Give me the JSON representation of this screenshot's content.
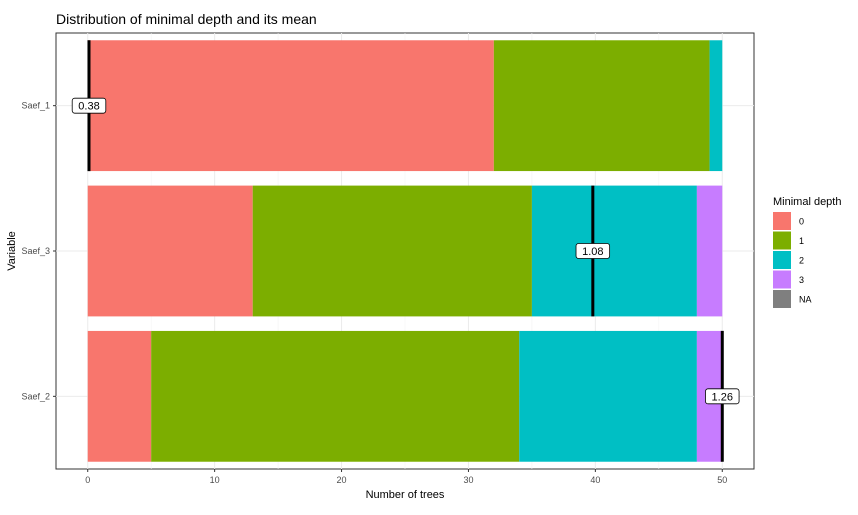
{
  "chart_data": {
    "type": "bar",
    "orientation": "horizontal",
    "stacked": true,
    "title": "Distribution of minimal depth and its mean",
    "xlabel": "Number of trees",
    "ylabel": "Variable",
    "xlim": [
      -2.5,
      52.5
    ],
    "x_ticks": [
      0,
      10,
      20,
      30,
      40,
      50
    ],
    "grid": true,
    "categories": [
      "Saef_1",
      "Saef_3",
      "Saef_2"
    ],
    "series": [
      {
        "name": "0",
        "color": "#F8766D",
        "values": [
          32,
          13,
          5
        ]
      },
      {
        "name": "1",
        "color": "#7CAE00",
        "values": [
          17,
          22,
          29
        ]
      },
      {
        "name": "2",
        "color": "#00BFC4",
        "values": [
          1,
          13,
          14
        ]
      },
      {
        "name": "3",
        "color": "#C77CFF",
        "values": [
          0,
          2,
          2
        ]
      },
      {
        "name": "NA",
        "color": "#7F7F7F",
        "values": [
          0,
          0,
          0
        ]
      }
    ],
    "means": [
      {
        "label": "0.38",
        "x": 0.1
      },
      {
        "label": "1.08",
        "x": 39.8
      },
      {
        "label": "1.26",
        "x": 50.0
      }
    ],
    "legend": {
      "title": "Minimal depth",
      "placement": "right",
      "entries": [
        {
          "label": "0",
          "color": "#F8766D"
        },
        {
          "label": "1",
          "color": "#7CAE00"
        },
        {
          "label": "2",
          "color": "#00BFC4"
        },
        {
          "label": "3",
          "color": "#C77CFF"
        },
        {
          "label": "NA",
          "color": "#7F7F7F"
        }
      ]
    }
  }
}
